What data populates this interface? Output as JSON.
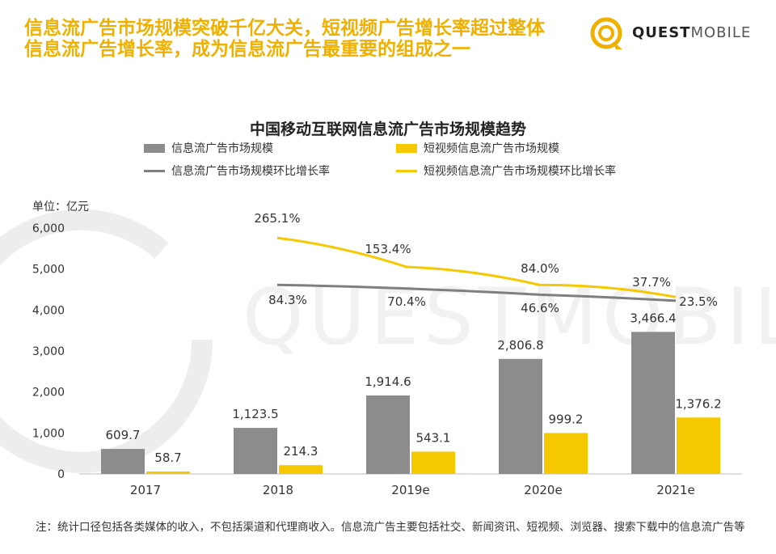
{
  "headline": {
    "line1": "信息流广告市场规模突破千亿大关，短视频广告增长率超过整体",
    "line2": "信息流广告增长率，成为信息流广告最重要的组成之一"
  },
  "logo": {
    "part1": "QUEST",
    "part2": "MOBILE"
  },
  "watermark": "QUESTMOBILE",
  "unit_label": "单位：亿元",
  "note": "注：统计口径包括各类媒体的收入，不包括渠道和代理商收入。信息流广告主要包括社交、新闻资讯、短视频、浏览器、搜索下载中的信息流广告等",
  "colors": {
    "accent": "#F0B000",
    "gray_bar": "#8C8C8C",
    "yellow_bar": "#F5C800",
    "gray_line": "#7F7F7F",
    "yellow_line": "#F5C800"
  },
  "chart_data": {
    "type": "bar",
    "title": "中国移动互联网信息流广告市场规模趋势",
    "categories": [
      "2017",
      "2018",
      "2019e",
      "2020e",
      "2021e"
    ],
    "ylim": [
      0,
      6000
    ],
    "yticks": [
      "0",
      "1,000",
      "2,000",
      "3,000",
      "4,000",
      "5,000",
      "6,000"
    ],
    "legend_position": "top",
    "series": [
      {
        "name": "信息流广告市场规模",
        "kind": "bar",
        "color": "#8C8C8C",
        "values": [
          609.7,
          1123.5,
          1914.6,
          2806.8,
          3466.4
        ],
        "labels": [
          "609.7",
          "1,123.5",
          "1,914.6",
          "2,806.8",
          "3,466.4"
        ]
      },
      {
        "name": "短视频信息流广告市场规模",
        "kind": "bar",
        "color": "#F5C800",
        "values": [
          58.7,
          214.3,
          543.1,
          999.2,
          1376.2
        ],
        "labels": [
          "58.7",
          "214.3",
          "543.1",
          "999.2",
          "1,376.2"
        ]
      },
      {
        "name": "信息流广告市场规模环比增长率",
        "kind": "line",
        "color": "#7F7F7F",
        "categories": [
          "2018",
          "2019e",
          "2020e",
          "2021e"
        ],
        "values_pct": [
          84.3,
          70.4,
          46.6,
          23.5
        ],
        "labels": [
          "84.3%",
          "70.4%",
          "46.6%",
          "23.5%"
        ]
      },
      {
        "name": "短视频信息流广告市场规模环比增长率",
        "kind": "line",
        "color": "#F5C800",
        "categories": [
          "2018",
          "2019e",
          "2020e",
          "2021e"
        ],
        "values_pct": [
          265.1,
          153.4,
          84.0,
          37.7
        ],
        "labels": [
          "265.1%",
          "153.4%",
          "84.0%",
          "37.7%"
        ]
      }
    ]
  }
}
